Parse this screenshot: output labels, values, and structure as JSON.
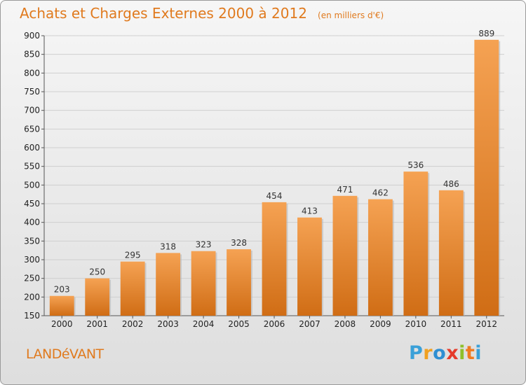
{
  "header": {
    "title": "Achats et Charges Externes 2000 à 2012",
    "subtitle": "(en milliers d'€)"
  },
  "footer": {
    "commune": "LANDéVANT",
    "logo_letters": [
      "P",
      "r",
      "o",
      "x",
      "i",
      "t",
      "i"
    ],
    "logo_colors": [
      "#3aa0d8",
      "#f0a020",
      "#2f8fd2",
      "#e53a2a",
      "#8fbf2a",
      "#f07a20",
      "#3aa0d8"
    ]
  },
  "colors": {
    "accent": "#e07a1e",
    "bar_top": "#f5a253",
    "bar_bottom": "#d06d15",
    "grid": "#cfcfcf"
  },
  "chart_data": {
    "type": "bar",
    "title": "Achats et Charges Externes 2000 à 2012",
    "subtitle": "(en milliers d'€)",
    "xlabel": "",
    "ylabel": "",
    "categories": [
      "2000",
      "2001",
      "2002",
      "2003",
      "2004",
      "2005",
      "2006",
      "2007",
      "2008",
      "2009",
      "2010",
      "2011",
      "2012"
    ],
    "values": [
      203,
      250,
      295,
      318,
      323,
      328,
      454,
      413,
      471,
      462,
      536,
      486,
      889
    ],
    "ylim": [
      150,
      900
    ],
    "yticks": [
      150,
      200,
      250,
      300,
      350,
      400,
      450,
      500,
      550,
      600,
      650,
      700,
      750,
      800,
      850,
      900
    ],
    "grid": true,
    "legend": "none"
  }
}
